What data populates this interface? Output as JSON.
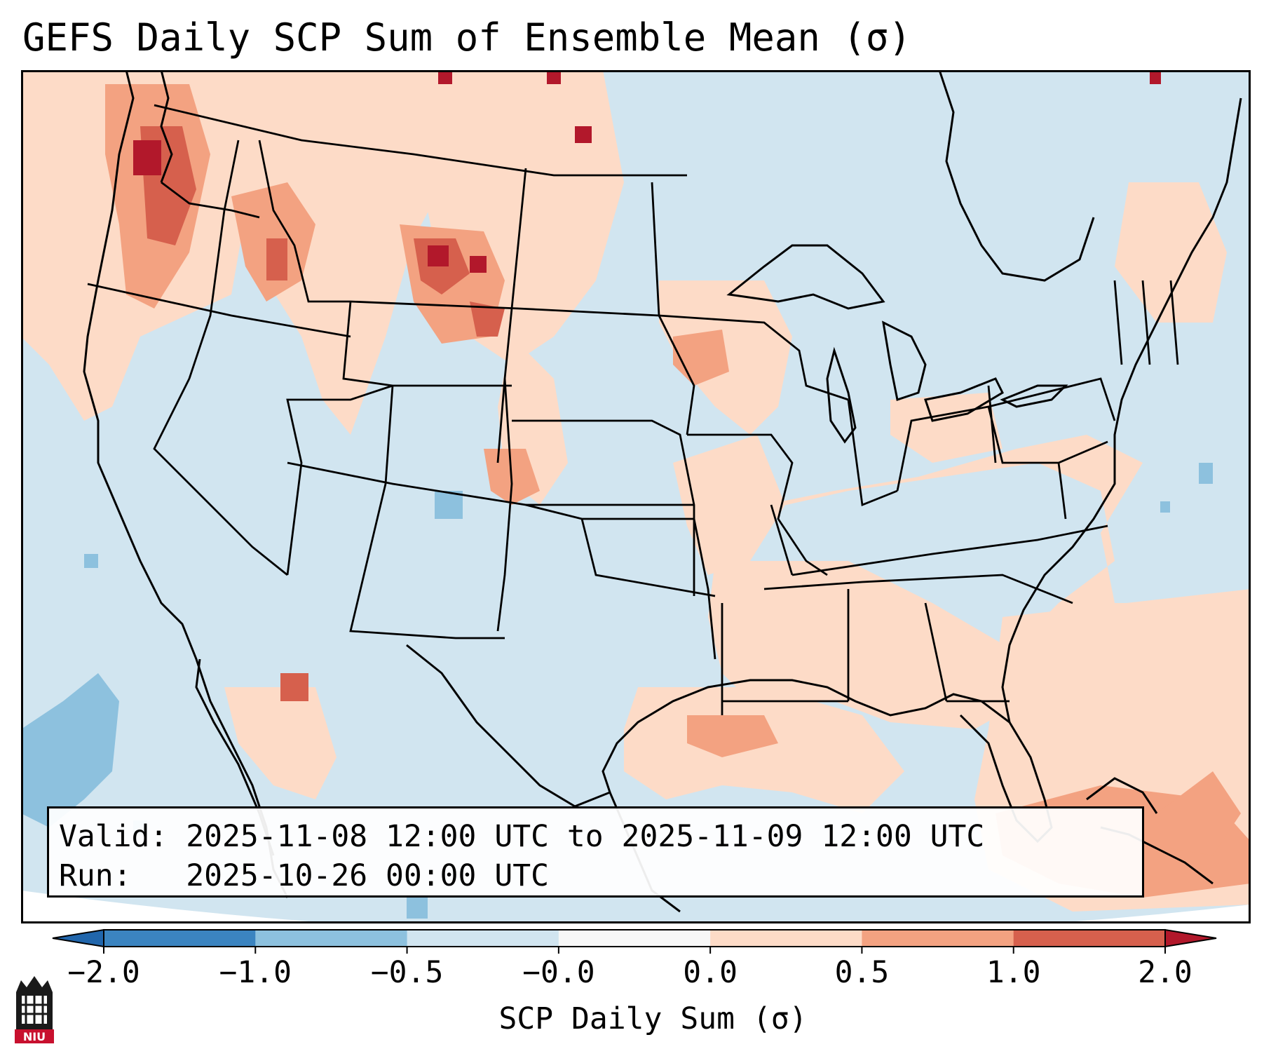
{
  "title": "GEFS Daily SCP Sum of Ensemble Mean (σ)",
  "info": {
    "valid_label": "Valid:",
    "valid_value": "2025-11-08 12:00 UTC to 2025-11-09 12:00 UTC",
    "run_label": "Run:",
    "run_value": "2025-10-26 00:00 UTC"
  },
  "colorbar": {
    "label": "SCP Daily Sum (σ)",
    "ticks": [
      "−2.0",
      "−1.0",
      "−0.5",
      "−0.0",
      "0.0",
      "0.5",
      "1.0",
      "2.0"
    ],
    "colors": [
      "#3b84c0",
      "#8dc1de",
      "#d1e5f0",
      "#f7f7f7",
      "#fddbc7",
      "#f3a281",
      "#d6604d"
    ],
    "extend_low_color": "#2166ac",
    "extend_high_color": "#b2182b"
  },
  "map": {
    "ocean_color": "#d1e5f0",
    "land_color": "#d1e5f0",
    "anomaly_regions": [
      {
        "name": "Pacific Northwest",
        "level": 1.0
      },
      {
        "name": "Northern Plains",
        "level": 1.0
      },
      {
        "name": "Southeast US",
        "level": 0.25
      },
      {
        "name": "Western Atlantic",
        "level": 0.25
      },
      {
        "name": "Eastern Pacific",
        "level": -0.75
      }
    ]
  },
  "logo": {
    "text": "NIU"
  }
}
